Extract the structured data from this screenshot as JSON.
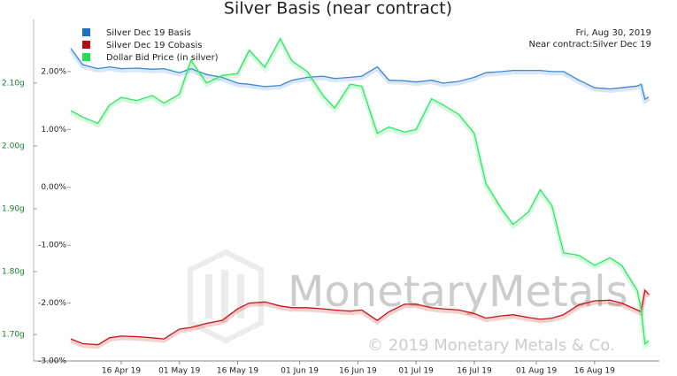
{
  "chart_data": {
    "type": "line",
    "title": "Silver Basis (near contract)",
    "annotations": [
      "Fri, Aug 30, 2019",
      "Near contract:Silver Dec 19"
    ],
    "watermark": [
      "MonetaryMetals",
      "© 2019 Monetary Metals & Co."
    ],
    "x": [
      "2019-04-03",
      "2019-04-06",
      "2019-04-10",
      "2019-04-13",
      "2019-04-16",
      "2019-04-20",
      "2019-04-24",
      "2019-04-27",
      "2019-05-01",
      "2019-05-04",
      "2019-05-08",
      "2019-05-12",
      "2019-05-16",
      "2019-05-19",
      "2019-05-23",
      "2019-05-27",
      "2019-05-30",
      "2019-06-03",
      "2019-06-07",
      "2019-06-10",
      "2019-06-14",
      "2019-06-17",
      "2019-06-21",
      "2019-06-24",
      "2019-06-28",
      "2019-07-01",
      "2019-07-05",
      "2019-07-08",
      "2019-07-12",
      "2019-07-16",
      "2019-07-19",
      "2019-07-23",
      "2019-07-26",
      "2019-07-30",
      "2019-08-02",
      "2019-08-05",
      "2019-08-08",
      "2019-08-12",
      "2019-08-16",
      "2019-08-20",
      "2019-08-23",
      "2019-08-27",
      "2019-08-28",
      "2019-08-29",
      "2019-08-30"
    ],
    "series": [
      {
        "name": "Silver Dec 19 Basis",
        "color": "#3f88d6",
        "legend_color": "#1f6fc4",
        "values": [
          2.4,
          2.12,
          2.05,
          2.08,
          2.05,
          2.06,
          2.04,
          2.05,
          1.98,
          2.05,
          1.95,
          1.9,
          1.8,
          1.78,
          1.74,
          1.76,
          1.85,
          1.9,
          1.92,
          1.88,
          1.9,
          1.92,
          2.08,
          1.85,
          1.84,
          1.82,
          1.85,
          1.8,
          1.83,
          1.9,
          1.98,
          2.0,
          2.02,
          2.02,
          2.02,
          2.0,
          2.0,
          1.85,
          1.72,
          1.7,
          1.72,
          1.75,
          1.78,
          1.52,
          1.56
        ]
      },
      {
        "name": "Silver Dec 19 Cobasis",
        "color": "#cc1515",
        "legend_color": "#b01010",
        "values": [
          -2.62,
          -2.7,
          -2.72,
          -2.6,
          -2.57,
          -2.58,
          -2.6,
          -2.62,
          -2.45,
          -2.42,
          -2.35,
          -2.3,
          -2.1,
          -2.0,
          -1.98,
          -2.05,
          -2.08,
          -2.08,
          -2.1,
          -2.12,
          -2.14,
          -2.12,
          -2.3,
          -2.15,
          -2.02,
          -2.02,
          -2.08,
          -2.1,
          -2.12,
          -2.18,
          -2.26,
          -2.22,
          -2.2,
          -2.25,
          -2.28,
          -2.26,
          -2.2,
          -2.03,
          -1.96,
          -1.95,
          -2.0,
          -2.12,
          -2.15,
          -1.78,
          -1.85
        ]
      },
      {
        "name": "Dollar Bid Price (in silver)",
        "color": "#2ee860",
        "legend_color": "#22dd55",
        "axis": "y2",
        "values": [
          2.056,
          2.046,
          2.036,
          2.065,
          2.077,
          2.072,
          2.08,
          2.068,
          2.082,
          2.136,
          2.1,
          2.112,
          2.115,
          2.152,
          2.125,
          2.17,
          2.135,
          2.118,
          2.08,
          2.06,
          2.098,
          2.095,
          2.02,
          2.03,
          2.022,
          2.026,
          2.075,
          2.065,
          2.05,
          2.02,
          1.94,
          1.9,
          1.875,
          1.895,
          1.93,
          1.905,
          1.83,
          1.826,
          1.81,
          1.822,
          1.81,
          1.77,
          1.74,
          1.685,
          1.69
        ]
      }
    ],
    "xlim": [
      "2019-04-03",
      "2019-09-01"
    ],
    "xticks": [
      {
        "value": "2019-04-16",
        "label": "16 Apr 19"
      },
      {
        "value": "2019-05-01",
        "label": "01 May 19"
      },
      {
        "value": "2019-05-16",
        "label": "16 May 19"
      },
      {
        "value": "2019-06-01",
        "label": "01 Jun 19"
      },
      {
        "value": "2019-06-16",
        "label": "16 Jun 19"
      },
      {
        "value": "2019-07-01",
        "label": "01 Jul 19"
      },
      {
        "value": "2019-07-16",
        "label": "16 Jul 19"
      },
      {
        "value": "2019-08-01",
        "label": "01 Aug 19"
      },
      {
        "value": "2019-08-16",
        "label": "16 Aug 19"
      }
    ],
    "ylim": [
      -3,
      2.9
    ],
    "yticks": [
      {
        "value": -3,
        "label": "-3.00%"
      },
      {
        "value": -2,
        "label": "-2.00%"
      },
      {
        "value": -1,
        "label": "-1.00%"
      },
      {
        "value": 0,
        "label": "0.00%"
      },
      {
        "value": 1,
        "label": "1.00%"
      },
      {
        "value": 2,
        "label": "2.00%"
      }
    ],
    "y2lim": [
      1.658,
      2.201
    ],
    "y2ticks": [
      {
        "value": 1.7,
        "label": "1.70g"
      },
      {
        "value": 1.8,
        "label": "1.80g"
      },
      {
        "value": 1.9,
        "label": "1.90g"
      },
      {
        "value": 2.0,
        "label": "2.00g"
      },
      {
        "value": 2.1,
        "label": "2.10g"
      }
    ],
    "grid": false,
    "legend": "upper left"
  }
}
